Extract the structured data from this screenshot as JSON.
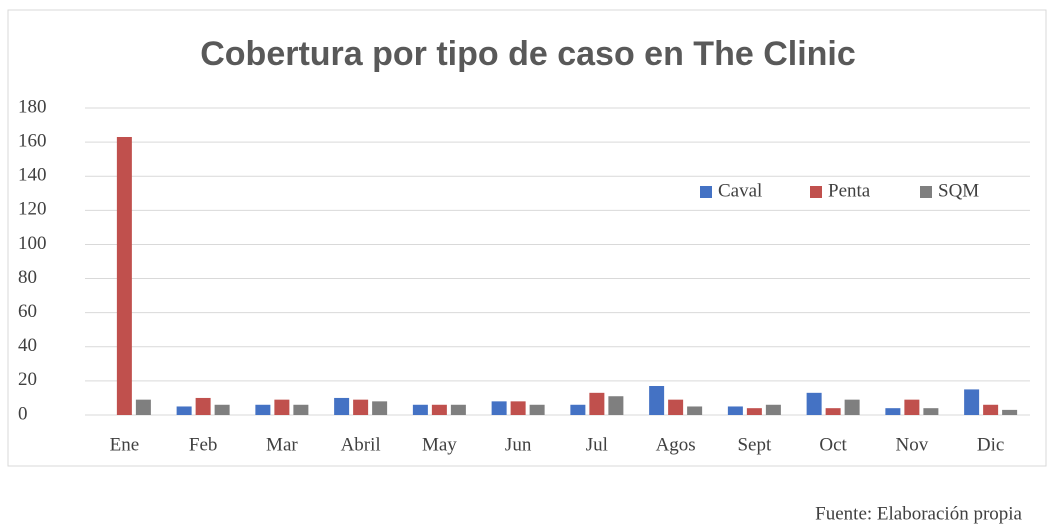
{
  "chart_data": {
    "type": "bar",
    "title": "Cobertura por tipo de caso en The Clinic",
    "categories": [
      "Ene",
      "Feb",
      "Mar",
      "Abril",
      "May",
      "Jun",
      "Jul",
      "Agos",
      "Sept",
      "Oct",
      "Nov",
      "Dic"
    ],
    "series": [
      {
        "name": "Caval",
        "color": "#4472c4",
        "values": [
          0,
          5,
          6,
          10,
          6,
          8,
          6,
          17,
          5,
          13,
          4,
          15
        ]
      },
      {
        "name": "Penta",
        "color": "#c0504d",
        "values": [
          163,
          10,
          9,
          9,
          6,
          8,
          13,
          9,
          4,
          4,
          9,
          6
        ]
      },
      {
        "name": "SQM",
        "color": "#7f7f7f",
        "values": [
          9,
          6,
          6,
          8,
          6,
          6,
          11,
          5,
          6,
          9,
          4,
          3
        ]
      }
    ],
    "ylim": [
      0,
      180
    ],
    "yticks": [
      0,
      20,
      40,
      60,
      80,
      100,
      120,
      140,
      160,
      180
    ],
    "grid": true,
    "legend": "upper right",
    "source": "Fuente: Elaboración propia"
  }
}
